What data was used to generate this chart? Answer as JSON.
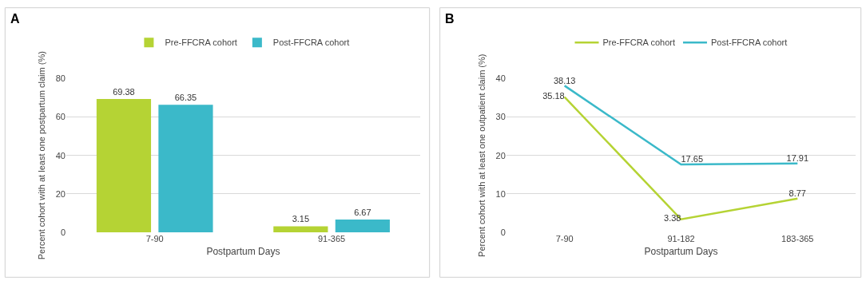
{
  "chart_data": [
    {
      "type": "bar",
      "title": "A",
      "xlabel": "Postpartum Days",
      "ylabel": "Percent cohort with at least one postpartum claim (%)",
      "categories": [
        "7-90",
        "91-365"
      ],
      "series": [
        {
          "name": "Pre-FFCRA cohort",
          "color": "#b5d334",
          "values": [
            69.38,
            3.15
          ]
        },
        {
          "name": "Post-FFCRA cohort",
          "color": "#3bb9c9",
          "values": [
            66.35,
            6.67
          ]
        }
      ],
      "ylim": [
        0,
        80
      ],
      "yticks": [
        0,
        20,
        40,
        60,
        80
      ],
      "grid": "y",
      "legend": "top",
      "data_labels": true
    },
    {
      "type": "line",
      "title": "B",
      "xlabel": "Postpartum Days",
      "ylabel": "Percent cohort with at least one outpatient claim (%)",
      "categories": [
        "7-90",
        "91-182",
        "183-365"
      ],
      "series": [
        {
          "name": "Pre-FFCRA cohort",
          "color": "#b5d334",
          "values": [
            35.18,
            3.38,
            8.77
          ]
        },
        {
          "name": "Post-FFCRA cohort",
          "color": "#3bb9c9",
          "values": [
            38.13,
            17.65,
            17.91
          ]
        }
      ],
      "ylim": [
        0,
        40
      ],
      "yticks": [
        0,
        10,
        20,
        30,
        40
      ],
      "grid": "y",
      "legend": "top",
      "data_labels": true,
      "marker": "none",
      "line_style": "solid"
    }
  ]
}
